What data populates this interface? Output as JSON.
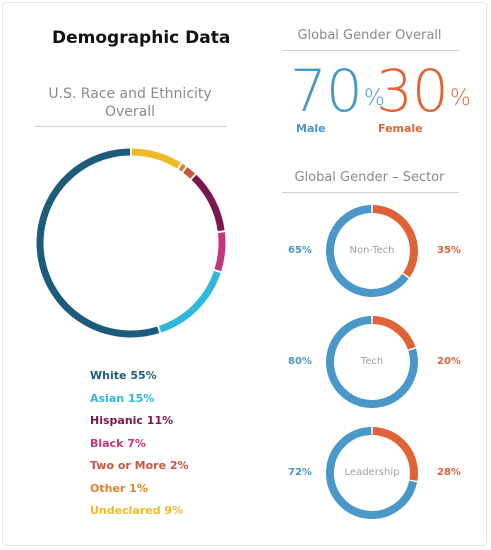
{
  "title": "Demographic Data",
  "race_title_line1": "U.S. Race and Ethnicity",
  "race_title_line2": "Overall",
  "global_overall_title": "Global Gender Overall",
  "sector_title": "Global Gender – Sector",
  "colors": {
    "male": "#4a97c9",
    "female": "#e06337"
  },
  "chart_data": [
    {
      "type": "pie",
      "title": "U.S. Race and Ethnicity Overall",
      "categories": [
        "White",
        "Asian",
        "Hispanic",
        "Black",
        "Two or More",
        "Other",
        "Undeclared"
      ],
      "values": [
        55,
        15,
        11,
        7,
        2,
        1,
        9
      ],
      "value_labels": [
        "55%",
        "15%",
        "11%",
        "7%",
        "2%",
        "1%",
        "9%"
      ],
      "colors": [
        "#1d5b7c",
        "#2fb8dc",
        "#7d1550",
        "#c2387a",
        "#c8553f",
        "#e0822b",
        "#f0b928"
      ],
      "donut": true,
      "legend_position": "bottom"
    },
    {
      "type": "table",
      "title": "Global Gender Overall",
      "rows": [
        {
          "label": "Male",
          "value": 70,
          "value_label": "70",
          "unit": "%"
        },
        {
          "label": "Female",
          "value": 30,
          "value_label": "30",
          "unit": "%"
        }
      ]
    },
    {
      "type": "pie",
      "title": "Global Gender – Sector",
      "donut": true,
      "sectors": [
        {
          "name": "Non-Tech",
          "male": 65,
          "female": 35,
          "male_label": "65%",
          "female_label": "35%"
        },
        {
          "name": "Tech",
          "male": 80,
          "female": 20,
          "male_label": "80%",
          "female_label": "20%"
        },
        {
          "name": "Leadership",
          "male": 72,
          "female": 28,
          "male_label": "72%",
          "female_label": "28%"
        }
      ]
    }
  ]
}
